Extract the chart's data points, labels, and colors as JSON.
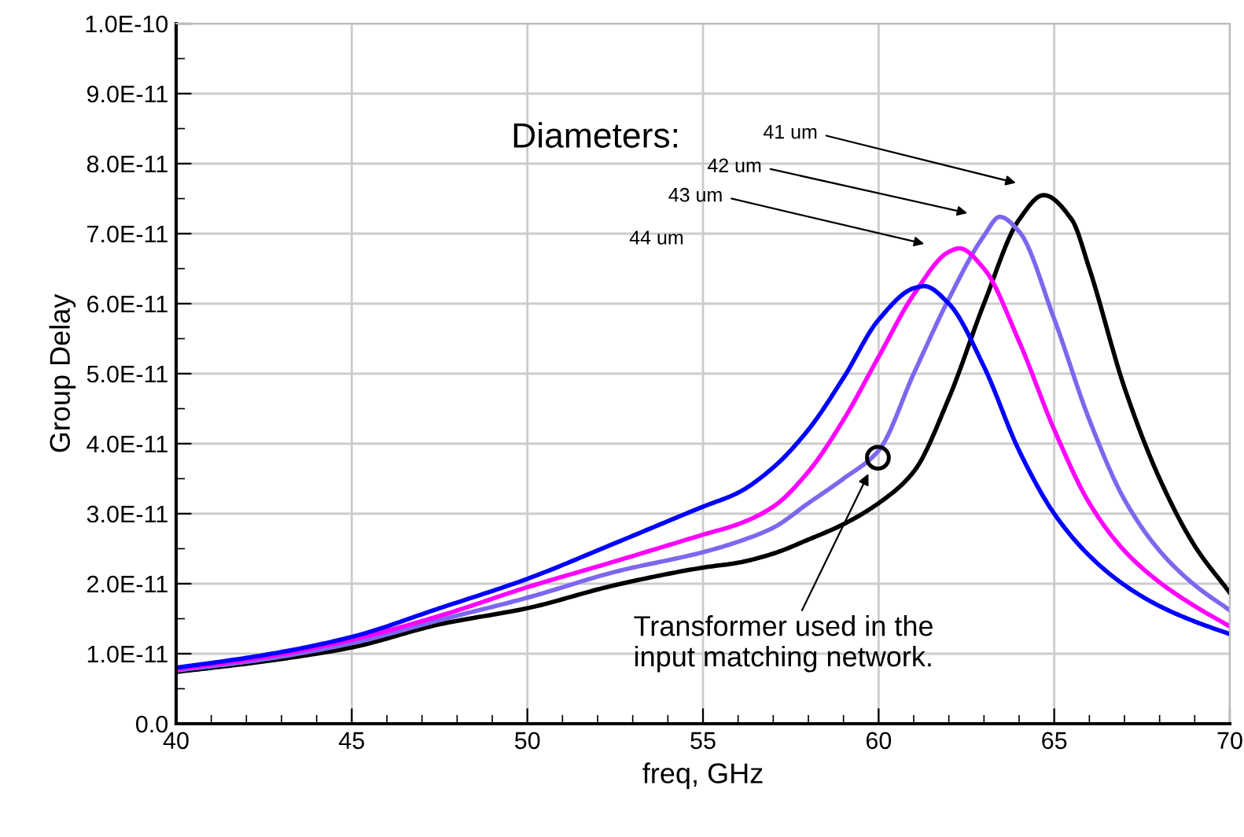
{
  "chart_data": {
    "type": "line",
    "xlabel": "freq, GHz",
    "ylabel": "Group Delay",
    "xlim": [
      40,
      70
    ],
    "xticks": [
      40,
      45,
      50,
      55,
      60,
      65,
      70
    ],
    "ylim": [
      0,
      1e-10
    ],
    "yticks": [
      {
        "value": 0,
        "label": "0.0"
      },
      {
        "value": 1e-11,
        "label": "1.0E-11"
      },
      {
        "value": 2e-11,
        "label": "2.0E-11"
      },
      {
        "value": 3e-11,
        "label": "3.0E-11"
      },
      {
        "value": 4e-11,
        "label": "4.0E-11"
      },
      {
        "value": 5e-11,
        "label": "5.0E-11"
      },
      {
        "value": 6e-11,
        "label": "6.0E-11"
      },
      {
        "value": 7e-11,
        "label": "7.0E-11"
      },
      {
        "value": 8e-11,
        "label": "8.0E-11"
      },
      {
        "value": 9e-11,
        "label": "9.0E-11"
      },
      {
        "value": 1e-10,
        "label": "1.0E-10"
      }
    ],
    "grid": true,
    "legend": false,
    "marker": "none",
    "line_style": "solid",
    "series": [
      {
        "color": "#000000",
        "x": [
          40,
          42.5,
          45,
          47.5,
          50,
          52.5,
          55,
          56,
          57,
          58,
          59,
          60,
          61,
          62,
          63,
          64,
          64.7,
          65.5,
          66,
          67,
          68,
          69,
          70
        ],
        "values": [
          7.4e-12,
          8.9e-12,
          1.09e-11,
          1.42e-11,
          1.65e-11,
          1.98e-11,
          2.23e-11,
          2.3e-11,
          2.43e-11,
          2.63e-11,
          2.85e-11,
          3.15e-11,
          3.6e-11,
          4.65e-11,
          6e-11,
          7.2e-11,
          7.55e-11,
          7.2e-11,
          6.5e-11,
          4.8e-11,
          3.5e-11,
          2.54e-11,
          1.87e-11
        ]
      },
      {
        "color": "#7b68ee",
        "x": [
          40,
          42.5,
          45,
          47.5,
          50,
          52.5,
          55,
          56,
          57,
          58,
          59,
          60,
          61,
          62,
          63,
          63.45,
          64,
          65,
          66,
          67,
          68,
          69,
          70
        ],
        "values": [
          7.6e-12,
          9.2e-12,
          1.15e-11,
          1.48e-11,
          1.8e-11,
          2.17e-11,
          2.45e-11,
          2.6e-11,
          2.8e-11,
          3.15e-11,
          3.5e-11,
          3.9e-11,
          5e-11,
          6.07e-11,
          6.97e-11,
          7.24e-11,
          7.03e-11,
          5.78e-11,
          4.34e-11,
          3.2e-11,
          2.47e-11,
          1.98e-11,
          1.62e-11
        ]
      },
      {
        "color": "#ff00ff",
        "x": [
          40,
          42.5,
          45,
          47.5,
          50,
          52.5,
          55,
          56,
          57,
          58,
          59,
          60,
          61,
          62,
          62.3,
          63,
          64,
          65,
          66,
          67,
          68,
          69,
          70
        ],
        "values": [
          7.8e-12,
          9.5e-12,
          1.2e-11,
          1.54e-11,
          1.95e-11,
          2.32e-11,
          2.7e-11,
          2.85e-11,
          3.1e-11,
          3.6e-11,
          4.34e-11,
          5.24e-11,
          6.13e-11,
          6.74e-11,
          6.79e-11,
          6.5e-11,
          5.46e-11,
          4.2e-11,
          3.15e-11,
          2.47e-11,
          2.02e-11,
          1.68e-11,
          1.39e-11
        ]
      },
      {
        "color": "#0000ff",
        "x": [
          40,
          42.5,
          45,
          47.5,
          50,
          52.5,
          55,
          56,
          57,
          58,
          59,
          60,
          61,
          61.3,
          62,
          63,
          64,
          65,
          66,
          67,
          68,
          69,
          70
        ],
        "values": [
          8e-12,
          9.8e-12,
          1.24e-11,
          1.65e-11,
          2.07e-11,
          2.58e-11,
          3.1e-11,
          3.3e-11,
          3.66e-11,
          4.2e-11,
          4.94e-11,
          5.77e-11,
          6.22e-11,
          6.25e-11,
          6e-11,
          5.1e-11,
          3.9e-11,
          3e-11,
          2.4e-11,
          1.98e-11,
          1.68e-11,
          1.46e-11,
          1.28e-11
        ]
      }
    ],
    "annotations": [
      "Diameters:",
      "41 um",
      "42 um",
      "43 um",
      "44 um",
      "Transformer used in the\ninput matching network."
    ]
  }
}
